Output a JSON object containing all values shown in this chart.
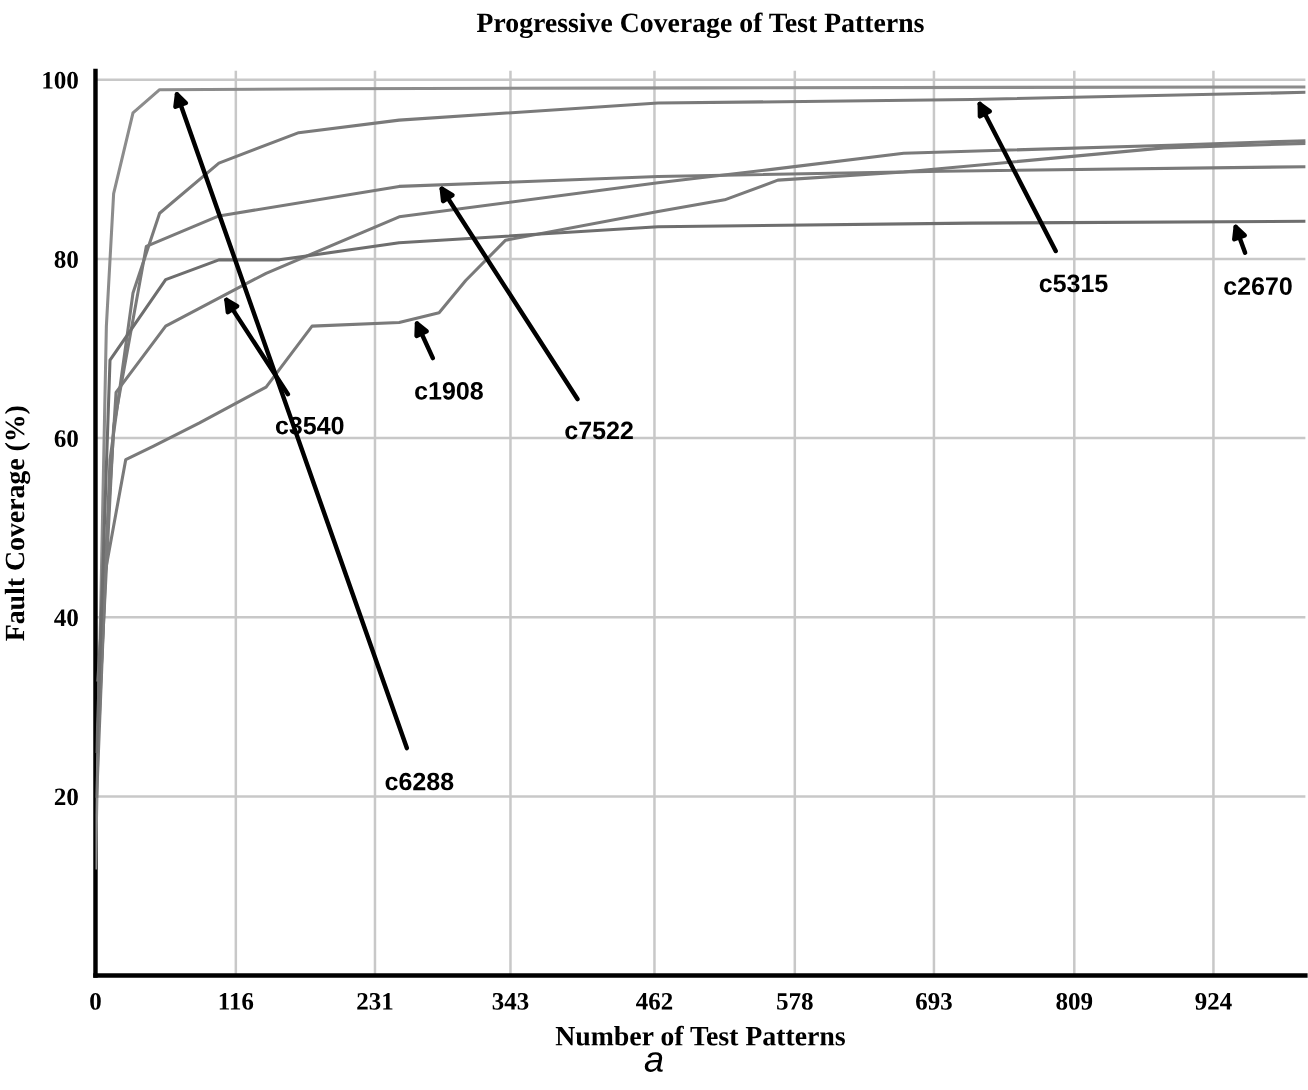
{
  "chart_data": {
    "type": "line",
    "title": "Progressive Coverage of Test Patterns",
    "xlabel": "Number of Test Patterns",
    "ylabel": "Fault Coverage (%)",
    "xlim": [
      0,
      1000
    ],
    "ylim": [
      0,
      101
    ],
    "xticks": [
      0,
      116,
      231,
      343,
      462,
      578,
      693,
      809,
      924
    ],
    "yticks": [
      20,
      40,
      60,
      80,
      100
    ],
    "grid": true,
    "marker": "none",
    "line_style": "solid",
    "series": [
      {
        "color": "#8c8c8c",
        "x": [
          0,
          9,
          15,
          31,
          53,
          200,
          500,
          1000
        ],
        "values": [
          12,
          72.5,
          87.3,
          96.3,
          98.9,
          99,
          99.1,
          99.2
        ]
      },
      {
        "color": "#7a7a7a",
        "x": [
          1,
          12,
          31,
          53,
          102,
          168,
          251,
          465,
          724,
          1000
        ],
        "values": [
          20,
          57.6,
          76.2,
          85.1,
          90.7,
          94.1,
          95.5,
          97.4,
          97.8,
          98.6
        ]
      },
      {
        "color": "#7a7a7a",
        "x": [
          2,
          15,
          42,
          102,
          251,
          465,
          700,
          1000
        ],
        "values": [
          27,
          61.3,
          81.4,
          84.8,
          88.1,
          89.2,
          89.8,
          90.3
        ]
      },
      {
        "color": "#7a7a7a",
        "x": [
          2,
          17,
          58,
          141,
          251,
          465,
          559,
          668,
          888,
          1000
        ],
        "values": [
          33,
          65.1,
          72.5,
          78.4,
          84.7,
          88.5,
          90,
          91.8,
          92.7,
          93.2
        ]
      },
      {
        "color": "#7a7a7a",
        "x": [
          3,
          8,
          25,
          48,
          86,
          141,
          179,
          251,
          284,
          306,
          339,
          465,
          520,
          564,
          668,
          883,
          1000
        ],
        "values": [
          28,
          45,
          57.6,
          59.1,
          61.7,
          65.7,
          72.5,
          72.9,
          74,
          77.6,
          82.1,
          85.3,
          86.6,
          88.8,
          89.7,
          92.4,
          92.9
        ]
      },
      {
        "color": "#6e6e6e",
        "x": [
          1,
          12,
          58,
          102,
          152,
          251,
          465,
          723,
          1000
        ],
        "values": [
          25,
          68.7,
          77.7,
          79.9,
          79.9,
          81.8,
          83.6,
          84,
          84.2
        ]
      }
    ],
    "annotations": [
      {
        "text": "c6288",
        "x": 66,
        "y": 98.9
      },
      {
        "text": "c5315",
        "x": 729,
        "y": 97.8
      },
      {
        "text": "c2670",
        "x": 941,
        "y": 84.1
      },
      {
        "text": "c1908",
        "x": 264,
        "y": 73.3
      },
      {
        "text": "c3540",
        "x": 106,
        "y": 75.9
      },
      {
        "text": "c7522",
        "x": 284,
        "y": 88.3
      },
      "a"
    ]
  }
}
